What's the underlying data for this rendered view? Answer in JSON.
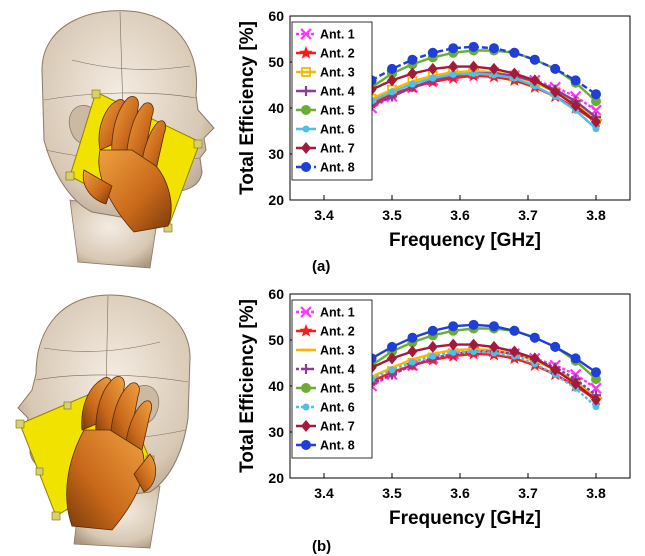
{
  "colors": {
    "ant1": "#ff33ff",
    "ant2": "#ff1a1a",
    "ant3": "#f5b800",
    "ant4": "#8a3c96",
    "ant5": "#6aad32",
    "ant6": "#4cc0e8",
    "ant7": "#a31a3a",
    "ant8": "#1f3fd6",
    "skin": "#e8dccd",
    "hand": "#d9811f",
    "board": "#f2e200"
  },
  "chart_data": [
    {
      "id": "a",
      "panel_label": "(a)",
      "type": "line",
      "xlabel": "Frequency [GHz]",
      "ylabel": "Total Efficiency [%]",
      "xlim": [
        3.35,
        3.85
      ],
      "ylim": [
        20,
        60
      ],
      "xticks": [
        3.4,
        3.5,
        3.6,
        3.7,
        3.8
      ],
      "yticks": [
        20,
        30,
        40,
        50,
        60
      ],
      "grid": false,
      "legend_position": "left",
      "x": [
        3.47,
        3.5,
        3.53,
        3.56,
        3.59,
        3.62,
        3.65,
        3.68,
        3.71,
        3.74,
        3.77,
        3.8
      ],
      "series": [
        {
          "name": "Ant. 1",
          "color": "ant1",
          "dash": "3,2",
          "marker": "x",
          "values": [
            40,
            42.5,
            44.5,
            46,
            47,
            47.5,
            47.5,
            47,
            46,
            44.5,
            42.5,
            39.5
          ]
        },
        {
          "name": "Ant. 2",
          "color": "ant2",
          "dash": "",
          "marker": "star",
          "values": [
            41,
            43,
            44.5,
            45.7,
            46.5,
            47,
            46.8,
            46,
            44.5,
            42.5,
            40,
            37
          ]
        },
        {
          "name": "Ant. 3",
          "color": "ant3",
          "dash": "",
          "marker": "square",
          "values": [
            42,
            44,
            45.8,
            47,
            47.8,
            48,
            47.8,
            47,
            45.5,
            43.5,
            41,
            37.5
          ]
        },
        {
          "name": "Ant. 4",
          "color": "ant4",
          "dash": "",
          "marker": "plus",
          "values": [
            40.5,
            42.5,
            44.5,
            46,
            47,
            47.5,
            47.5,
            47,
            45.8,
            44,
            41.5,
            38
          ]
        },
        {
          "name": "Ant. 5",
          "color": "ant5",
          "dash": "",
          "marker": "circle",
          "values": [
            44.5,
            47.5,
            49.5,
            51,
            52,
            52.5,
            52.5,
            52,
            50.5,
            48.5,
            45.5,
            41.5
          ]
        },
        {
          "name": "Ant. 6",
          "color": "ant6",
          "dash": "",
          "marker": "dot",
          "values": [
            41.5,
            43.5,
            45.2,
            46.5,
            47.3,
            47.5,
            47.2,
            46.5,
            44.8,
            42.5,
            39.5,
            35.5
          ]
        },
        {
          "name": "Ant. 7",
          "color": "ant7",
          "dash": "",
          "marker": "diamond",
          "values": [
            44,
            46,
            47.5,
            48.5,
            49,
            49,
            48.5,
            47.5,
            46,
            43.5,
            40.5,
            37
          ]
        },
        {
          "name": "Ant. 8",
          "color": "ant8",
          "dash": "6,3",
          "marker": "circle",
          "values": [
            46,
            48.5,
            50.5,
            52,
            53,
            53.3,
            53,
            52,
            50.5,
            48.5,
            46,
            43
          ]
        }
      ]
    },
    {
      "id": "b",
      "panel_label": "(b)",
      "type": "line",
      "xlabel": "Frequency [GHz]",
      "ylabel": "Total Efficiency [%]",
      "xlim": [
        3.35,
        3.85
      ],
      "ylim": [
        20,
        60
      ],
      "xticks": [
        3.4,
        3.5,
        3.6,
        3.7,
        3.8
      ],
      "yticks": [
        20,
        30,
        40,
        50,
        60
      ],
      "grid": false,
      "legend_position": "left",
      "x": [
        3.47,
        3.5,
        3.53,
        3.56,
        3.59,
        3.62,
        3.65,
        3.68,
        3.71,
        3.74,
        3.77,
        3.8
      ],
      "series": [
        {
          "name": "Ant. 1",
          "color": "ant1",
          "dash": "3,2",
          "marker": "x",
          "values": [
            40,
            42.5,
            44.5,
            46,
            47,
            47.5,
            47.5,
            47,
            46,
            44.5,
            42.5,
            39.5
          ]
        },
        {
          "name": "Ant. 2",
          "color": "ant2",
          "dash": "",
          "marker": "star",
          "values": [
            41,
            43,
            44.5,
            45.7,
            46.5,
            47,
            46.8,
            46,
            44.5,
            42.5,
            40,
            37
          ]
        },
        {
          "name": "Ant. 3",
          "color": "ant3",
          "dash": "",
          "marker": "dash",
          "values": [
            42,
            44,
            45.8,
            47,
            47.8,
            48,
            47.8,
            47,
            45.5,
            43.5,
            41,
            37.5
          ]
        },
        {
          "name": "Ant. 4",
          "color": "ant4",
          "dash": "3,2",
          "marker": "plus",
          "values": [
            40.5,
            42.5,
            44.5,
            46,
            47,
            47.5,
            47.5,
            47,
            45.8,
            44,
            41.5,
            38
          ]
        },
        {
          "name": "Ant. 5",
          "color": "ant5",
          "dash": "",
          "marker": "circle",
          "values": [
            44.5,
            47.5,
            49.5,
            51,
            52,
            52.5,
            52.5,
            52,
            50.5,
            48.5,
            45.5,
            41.5
          ]
        },
        {
          "name": "Ant. 6",
          "color": "ant6",
          "dash": "3,2",
          "marker": "dot",
          "values": [
            41.5,
            43.5,
            45.2,
            46.5,
            47.3,
            47.5,
            47.2,
            46.5,
            44.8,
            42.5,
            39.5,
            35.5
          ]
        },
        {
          "name": "Ant. 7",
          "color": "ant7",
          "dash": "",
          "marker": "diamond",
          "values": [
            44,
            46,
            47.5,
            48.5,
            49,
            49,
            48.5,
            47.5,
            46,
            43.5,
            40.5,
            37
          ]
        },
        {
          "name": "Ant. 8",
          "color": "ant8",
          "dash": "",
          "marker": "circle",
          "values": [
            46,
            48.5,
            50.5,
            52,
            53,
            53.3,
            53,
            52,
            50.5,
            48.5,
            46,
            43
          ]
        }
      ]
    }
  ]
}
